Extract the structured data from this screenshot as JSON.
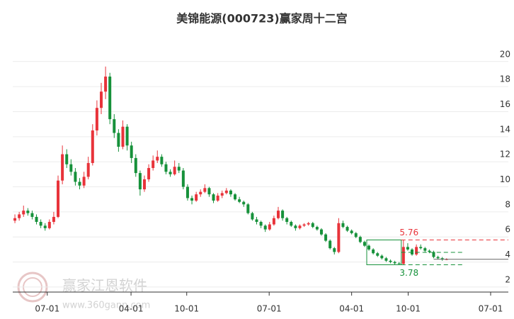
{
  "chart_data": {
    "type": "candlestick",
    "title": "美锦能源(000723)赢家周十二宫",
    "watermark": {
      "name": "赢家江恩软件",
      "url": "www.360gann.com"
    },
    "up_color": "#e8333a",
    "down_color": "#16913a",
    "xlim": [
      -0.5,
      114.3
    ],
    "xticks": [
      {
        "value": 7.5,
        "label": "07-01"
      },
      {
        "value": 26.9,
        "label": "04-01"
      },
      {
        "value": 39.8,
        "label": "10-01"
      },
      {
        "value": 58.9,
        "label": "07-01"
      },
      {
        "value": 78.0,
        "label": "04-01"
      },
      {
        "value": 91.1,
        "label": "10-01"
      },
      {
        "value": 110.2,
        "label": "07-01"
      }
    ],
    "ylim": [
      1.6,
      21.8
    ],
    "yticks": [
      2,
      4,
      6,
      8,
      10,
      12,
      14,
      16,
      18,
      20
    ],
    "grid": true,
    "high": 5.76,
    "low": 3.78,
    "mid_level": 4.77,
    "last_price": 4.22,
    "ohlc": [
      [
        7.3,
        7.8,
        7.1,
        7.5
      ],
      [
        7.5,
        8.0,
        7.3,
        7.8
      ],
      [
        7.8,
        8.5,
        7.6,
        8.1
      ],
      [
        8.1,
        8.3,
        7.7,
        7.9
      ],
      [
        7.9,
        8.1,
        7.4,
        7.6
      ],
      [
        7.6,
        7.8,
        7.0,
        7.2
      ],
      [
        7.2,
        7.4,
        6.7,
        6.9
      ],
      [
        6.9,
        7.1,
        6.5,
        6.7
      ],
      [
        6.7,
        7.4,
        6.6,
        7.2
      ],
      [
        7.2,
        8.0,
        7.0,
        7.6
      ],
      [
        7.6,
        10.9,
        7.5,
        10.5
      ],
      [
        10.5,
        13.3,
        10.2,
        12.6
      ],
      [
        12.6,
        13.0,
        11.5,
        11.8
      ],
      [
        11.8,
        12.2,
        10.9,
        11.2
      ],
      [
        11.2,
        11.5,
        10.1,
        10.4
      ],
      [
        10.4,
        10.7,
        9.8,
        10.1
      ],
      [
        10.1,
        11.2,
        9.9,
        10.8
      ],
      [
        10.8,
        12.4,
        10.6,
        11.9
      ],
      [
        11.9,
        15.0,
        11.7,
        14.5
      ],
      [
        14.5,
        16.9,
        14.1,
        16.3
      ],
      [
        16.3,
        18.3,
        15.8,
        17.6
      ],
      [
        17.6,
        19.6,
        17.0,
        18.8
      ],
      [
        18.8,
        19.1,
        15.0,
        15.4
      ],
      [
        15.4,
        15.8,
        13.9,
        14.3
      ],
      [
        14.3,
        14.6,
        12.8,
        13.2
      ],
      [
        13.2,
        15.3,
        13.0,
        14.8
      ],
      [
        14.8,
        15.0,
        12.9,
        13.3
      ],
      [
        13.3,
        13.6,
        11.9,
        12.3
      ],
      [
        12.3,
        12.6,
        10.8,
        11.1
      ],
      [
        11.1,
        11.3,
        9.3,
        9.8
      ],
      [
        9.8,
        10.9,
        9.6,
        10.6
      ],
      [
        10.6,
        11.8,
        10.4,
        11.5
      ],
      [
        11.5,
        12.5,
        11.3,
        12.1
      ],
      [
        12.1,
        12.9,
        11.9,
        12.4
      ],
      [
        12.4,
        12.6,
        11.6,
        11.8
      ],
      [
        11.8,
        12.0,
        11.0,
        11.2
      ],
      [
        11.2,
        11.4,
        10.8,
        11.0
      ],
      [
        11.0,
        12.1,
        10.9,
        11.6
      ],
      [
        11.6,
        11.9,
        11.1,
        11.3
      ],
      [
        11.3,
        11.5,
        9.8,
        10.0
      ],
      [
        10.0,
        10.2,
        8.9,
        9.1
      ],
      [
        9.1,
        9.3,
        8.6,
        8.9
      ],
      [
        8.9,
        9.6,
        8.8,
        9.4
      ],
      [
        9.4,
        9.8,
        9.2,
        9.6
      ],
      [
        9.6,
        10.2,
        9.5,
        9.9
      ],
      [
        9.9,
        10.0,
        9.2,
        9.4
      ],
      [
        9.4,
        9.5,
        8.7,
        8.9
      ],
      [
        8.9,
        9.5,
        8.8,
        9.3
      ],
      [
        9.3,
        9.7,
        9.1,
        9.5
      ],
      [
        9.5,
        9.9,
        9.4,
        9.7
      ],
      [
        9.7,
        9.8,
        9.2,
        9.4
      ],
      [
        9.4,
        9.5,
        8.9,
        9.0
      ],
      [
        9.0,
        9.2,
        8.7,
        8.8
      ],
      [
        8.8,
        8.9,
        8.4,
        8.6
      ],
      [
        8.6,
        8.7,
        7.8,
        7.9
      ],
      [
        7.9,
        8.0,
        7.3,
        7.4
      ],
      [
        7.4,
        7.6,
        7.0,
        7.2
      ],
      [
        7.2,
        7.3,
        6.7,
        6.9
      ],
      [
        6.9,
        7.0,
        6.4,
        6.6
      ],
      [
        6.6,
        7.2,
        6.5,
        7.0
      ],
      [
        7.0,
        7.7,
        6.9,
        7.5
      ],
      [
        7.5,
        8.4,
        7.4,
        8.1
      ],
      [
        8.1,
        8.2,
        7.3,
        7.5
      ],
      [
        7.5,
        7.6,
        7.0,
        7.2
      ],
      [
        7.2,
        7.3,
        6.8,
        6.9
      ],
      [
        6.9,
        7.0,
        6.5,
        6.7
      ],
      [
        6.7,
        7.0,
        6.6,
        6.9
      ],
      [
        6.9,
        7.1,
        6.8,
        7.0
      ],
      [
        7.0,
        7.2,
        6.9,
        7.1
      ],
      [
        7.1,
        7.2,
        6.7,
        6.8
      ],
      [
        6.8,
        6.9,
        6.5,
        6.6
      ],
      [
        6.6,
        6.7,
        6.1,
        6.2
      ],
      [
        6.2,
        6.3,
        5.6,
        5.7
      ],
      [
        5.7,
        5.8,
        5.0,
        5.1
      ],
      [
        5.1,
        5.2,
        4.6,
        4.8
      ],
      [
        4.8,
        7.5,
        4.7,
        7.1
      ],
      [
        7.1,
        7.3,
        6.7,
        6.8
      ],
      [
        6.8,
        6.9,
        6.4,
        6.5
      ],
      [
        6.5,
        6.6,
        6.2,
        6.3
      ],
      [
        6.3,
        6.4,
        5.9,
        6.0
      ],
      [
        6.0,
        6.1,
        5.5,
        5.6
      ],
      [
        5.6,
        5.7,
        5.2,
        5.3
      ],
      [
        5.3,
        5.4,
        4.9,
        5.0
      ],
      [
        5.0,
        5.1,
        4.6,
        4.7
      ],
      [
        4.7,
        4.8,
        4.4,
        4.5
      ],
      [
        4.5,
        4.6,
        4.2,
        4.3
      ],
      [
        4.3,
        4.4,
        4.0,
        4.1
      ],
      [
        4.1,
        4.2,
        3.9,
        4.0
      ],
      [
        4.0,
        4.1,
        3.8,
        3.9
      ],
      [
        3.9,
        4.0,
        3.78,
        3.85
      ],
      [
        3.85,
        5.76,
        3.8,
        5.2
      ],
      [
        5.2,
        5.5,
        4.9,
        5.0
      ],
      [
        5.0,
        5.1,
        4.5,
        4.6
      ],
      [
        4.6,
        5.4,
        4.5,
        5.2
      ],
      [
        5.2,
        5.4,
        5.0,
        5.1
      ],
      [
        5.1,
        5.2,
        4.8,
        4.9
      ],
      [
        4.9,
        5.0,
        4.7,
        4.8
      ],
      [
        4.8,
        4.9,
        4.3,
        4.4
      ],
      [
        4.4,
        4.5,
        4.2,
        4.3
      ],
      [
        4.3,
        4.4,
        4.1,
        4.2
      ],
      [
        4.2,
        4.3,
        4.15,
        4.22
      ]
    ]
  }
}
